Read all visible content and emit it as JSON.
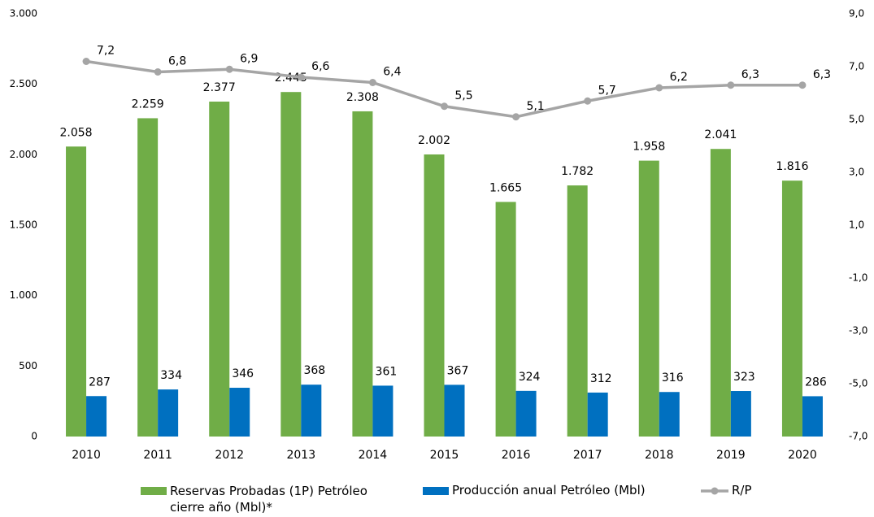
{
  "chart_data": {
    "type": "bar_line",
    "categories": [
      "2010",
      "2011",
      "2012",
      "2013",
      "2014",
      "2015",
      "2016",
      "2017",
      "2018",
      "2019",
      "2020"
    ],
    "series": [
      {
        "name": "Reservas Probadas (1P) Petróleo cierre año (Mbl)*",
        "color": "#70ad47",
        "type": "bar",
        "values": [
          2058,
          2259,
          2377,
          2445,
          2308,
          2002,
          1665,
          1782,
          1958,
          2041,
          1816
        ],
        "value_labels": [
          "2.058",
          "2.259",
          "2.377",
          "2.445",
          "2.308",
          "2.002",
          "1.665",
          "1.782",
          "1.958",
          "2.041",
          "1.816"
        ]
      },
      {
        "name": "Producción anual Petróleo (Mbl)",
        "color": "#0070c0",
        "type": "bar",
        "values": [
          287,
          334,
          346,
          368,
          361,
          367,
          324,
          312,
          316,
          323,
          286
        ]
      },
      {
        "name": "R/P",
        "color": "#a5a5a5",
        "type": "line",
        "axis": "y2",
        "values": [
          7.2,
          6.8,
          6.9,
          6.6,
          6.4,
          5.5,
          5.1,
          5.7,
          6.2,
          6.3,
          6.3
        ],
        "value_labels": [
          "7,2",
          "6,8",
          "6,9",
          "6,6",
          "6,4",
          "5,5",
          "5,1",
          "5,7",
          "6,2",
          "6,3",
          "6,3"
        ]
      }
    ],
    "ylim": [
      0,
      3000
    ],
    "yticks": [
      0,
      500,
      {
        "value": 1000,
        "label": "1.000"
      },
      {
        "value": 1500,
        "label": "1.500"
      },
      {
        "value": 2000,
        "label": "2.000"
      },
      {
        "value": 2500,
        "label": "2.500"
      },
      {
        "value": 3000,
        "label": "3.000"
      }
    ],
    "y2lim": [
      -7,
      9
    ],
    "y2ticks": [
      {
        "value": -7,
        "label": "-7,0"
      },
      {
        "value": -5,
        "label": "-5,0"
      },
      {
        "value": -3,
        "label": "-3,0"
      },
      {
        "value": -1,
        "label": "-1,0"
      },
      {
        "value": 1,
        "label": "1,0"
      },
      {
        "value": 3,
        "label": "3,0"
      },
      {
        "value": 5,
        "label": "5,0"
      },
      {
        "value": 7,
        "label": "7,0"
      },
      {
        "value": 9,
        "label": "9,0"
      }
    ],
    "grid": false,
    "legend": "bottom"
  }
}
